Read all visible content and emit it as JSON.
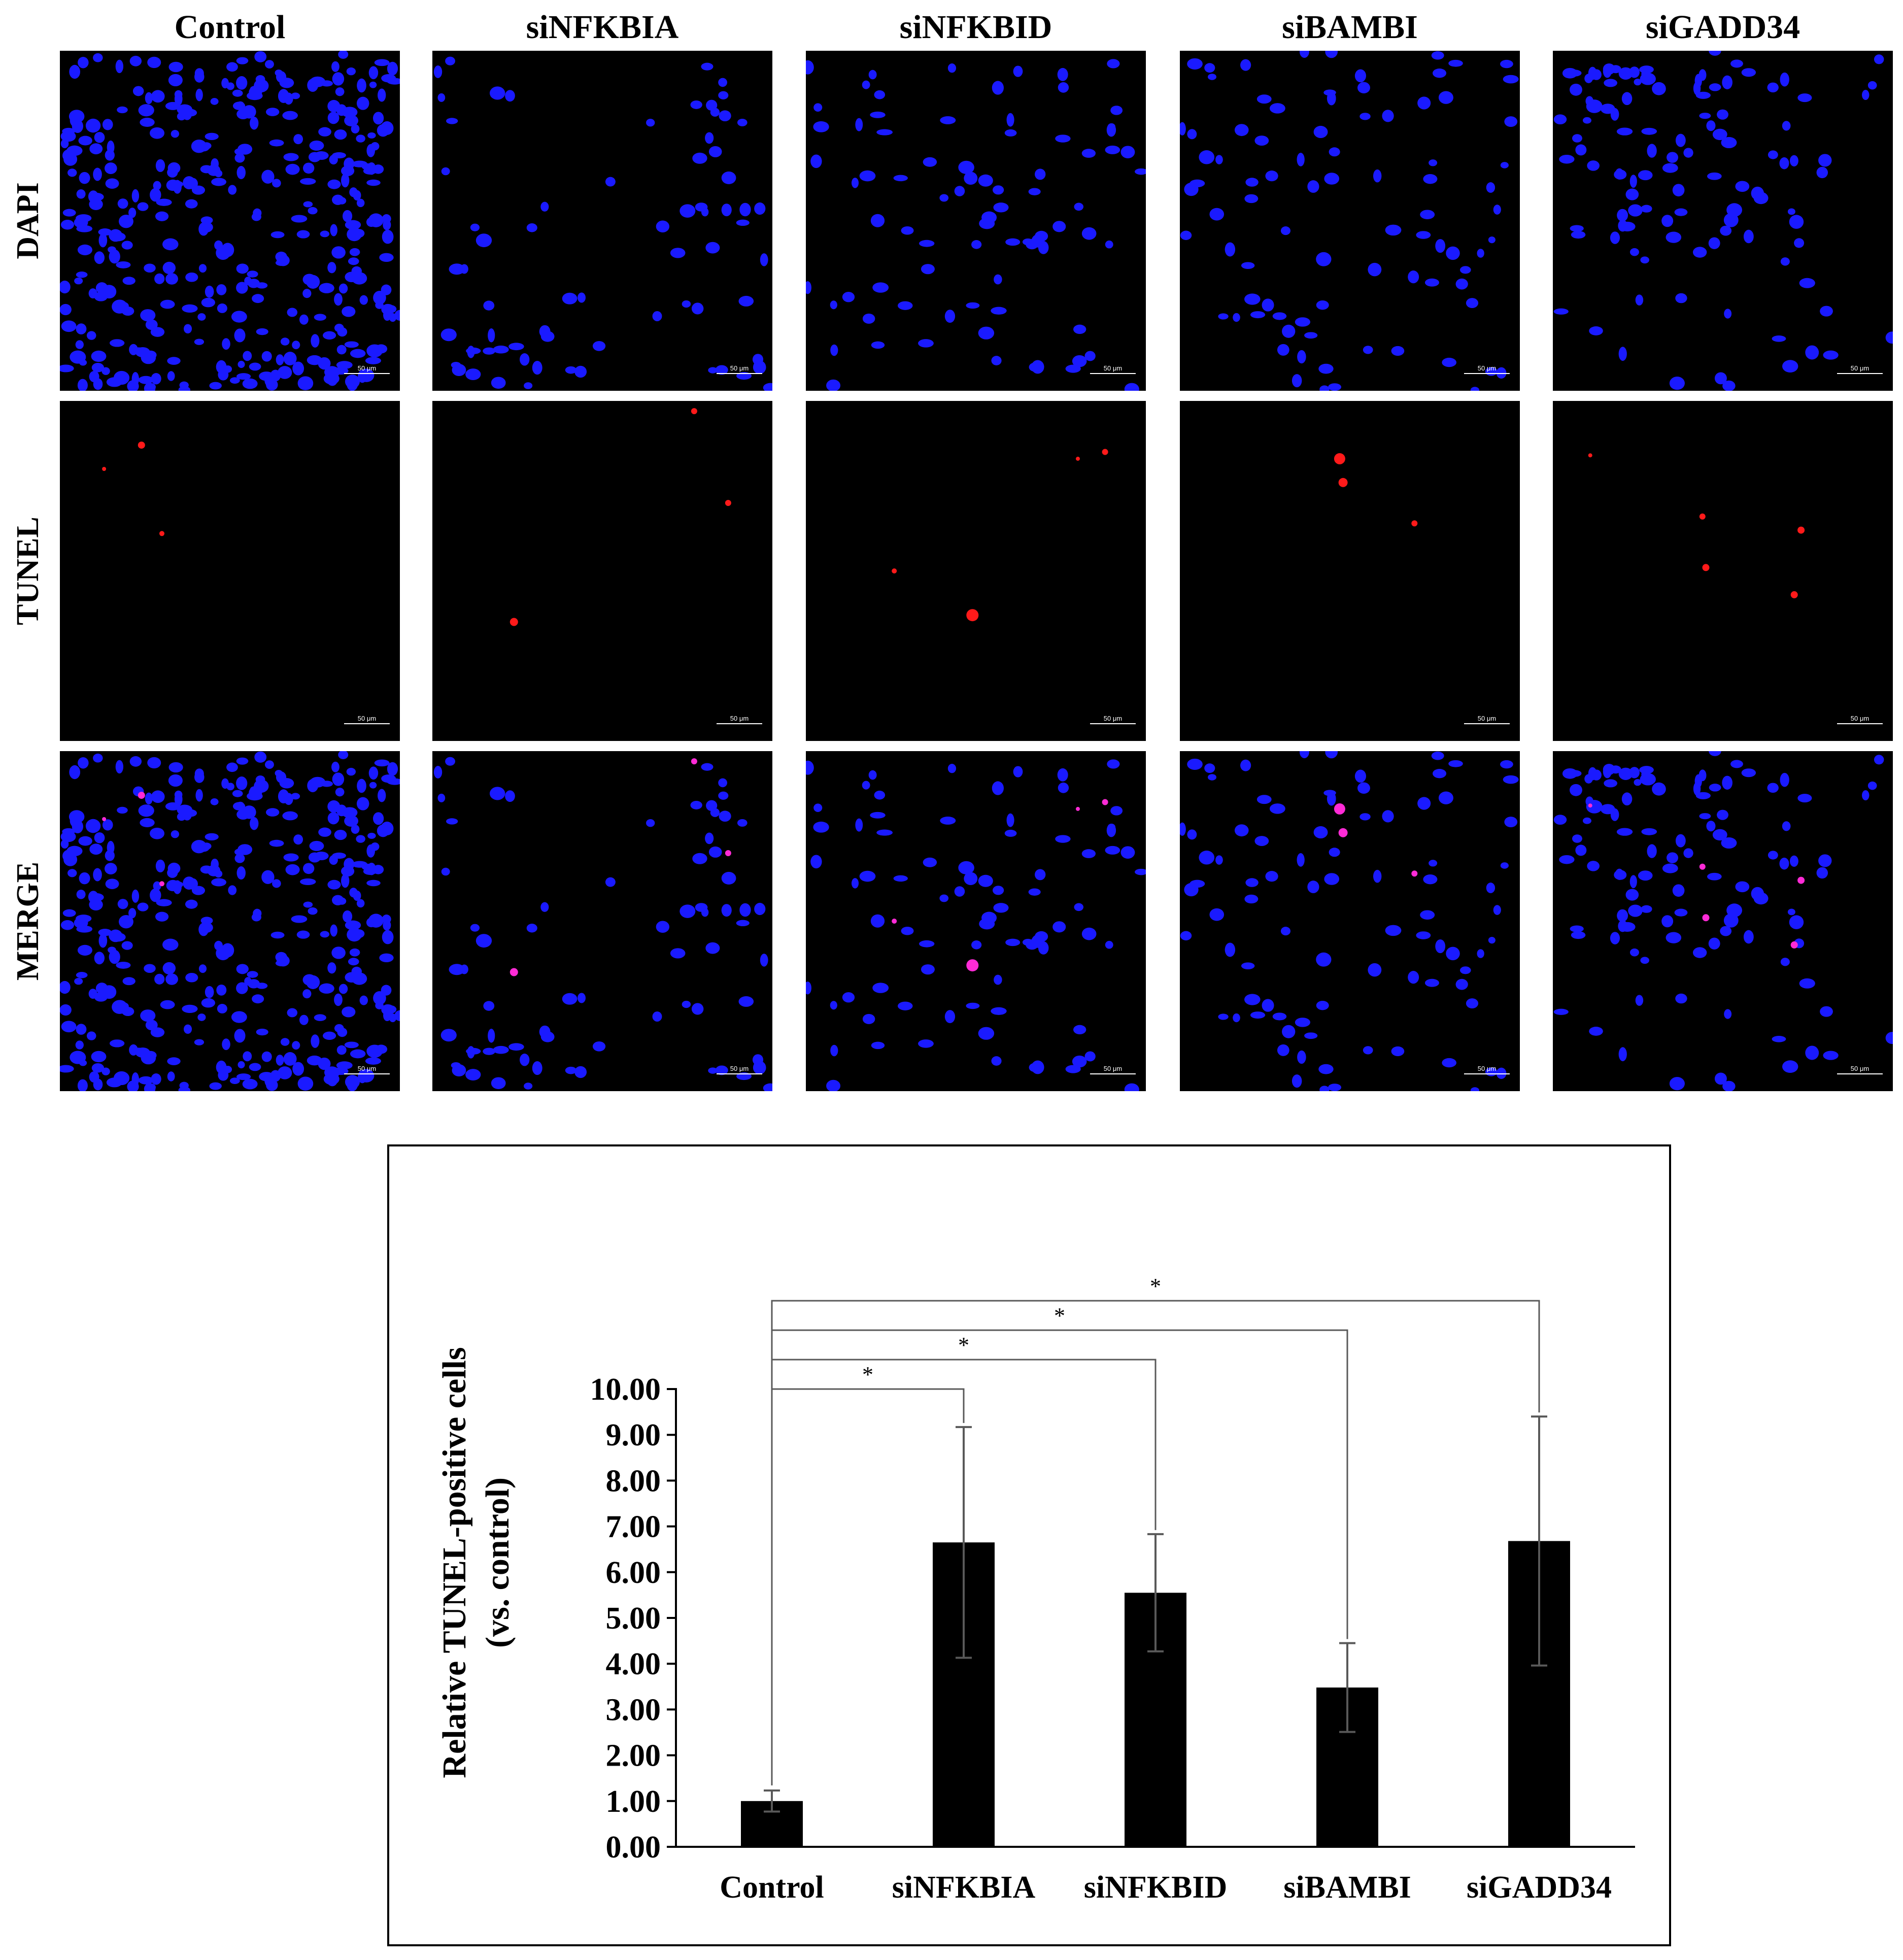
{
  "figure": {
    "columns": [
      "Control",
      "siNFKBIA",
      "siNFKBID",
      "siBAMBI",
      "siGADD34"
    ],
    "rows": [
      "DAPI",
      "TUNEL",
      "MERGE"
    ],
    "scale_bar_label": "50 μm",
    "colors": {
      "dapi": "#1a1aff",
      "tunel": "#ff1a1a",
      "merge_overlap": "#ff2bd6",
      "background": "#000000"
    }
  },
  "chart_data": {
    "type": "bar",
    "categories": [
      "Control",
      "siNFKBIA",
      "siNFKBID",
      "siBAMBI",
      "siGADD34"
    ],
    "values": [
      1.0,
      6.65,
      5.55,
      3.48,
      6.68
    ],
    "errors": [
      0.23,
      2.52,
      1.28,
      0.97,
      2.72
    ],
    "ylabel_line1": "Relative TUNEL-positive cells",
    "ylabel_line2": "(vs. control)",
    "ylim": [
      0,
      10
    ],
    "yticks": [
      "0.00",
      "1.00",
      "2.00",
      "3.00",
      "4.00",
      "5.00",
      "6.00",
      "7.00",
      "8.00",
      "9.00",
      "10.00"
    ],
    "significance_marker": "*",
    "bar_color": "#000000",
    "error_bar_color": "#595959",
    "grid": false,
    "legend": "none"
  }
}
